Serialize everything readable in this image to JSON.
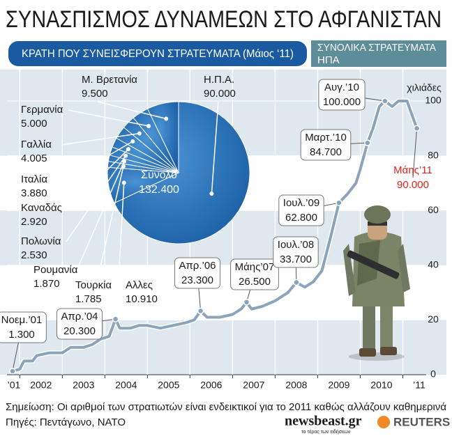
{
  "title": "ΣΥΝΑΣΠΙΣΜΟΣ ΔΥΝΑΜΕΩΝ ΣΤΟ ΑΦΓΑΝΙΣΤΑΝ",
  "chart_data": [
    {
      "type": "pie",
      "title": "ΚΡΑΤΗ ΠΟΥ ΣΥΝΕΙΣΦΕΡΟΥΝ ΣΤΡΑΤΕΥΜΑΤΑ (Μάιος ‘11)",
      "categories": [
        "Η.Π.Α.",
        "Αλλες",
        "Τουρκία",
        "Ρουμανία",
        "Πολωνία",
        "Καναδάς",
        "Ιταλία",
        "Γαλλία",
        "Γερμανία",
        "Μ. Βρετανία"
      ],
      "values": [
        90000,
        10910,
        1785,
        1870,
        2530,
        2920,
        3880,
        4005,
        5000,
        9500
      ],
      "value_labels": [
        "90.000",
        "10.910",
        "1.785",
        "1.870",
        "2.530",
        "2.920",
        "3.880",
        "4.005",
        "5.000",
        "9.500"
      ],
      "color": "#1f66ae",
      "total": {
        "label": "Σύνολο",
        "value": 132400,
        "value_label": "132.400"
      }
    },
    {
      "type": "line",
      "title": "ΣΥΝΟΛΙΚΑ ΣΤΡΑΤΕΥΜΑΤΑ",
      "subtitle": "ΗΠΑ",
      "y_label": "χιλιάδες",
      "x": [
        2001.83,
        2002.0,
        2002.1,
        2002.3,
        2002.4,
        2002.7,
        2003.0,
        2003.2,
        2003.5,
        2003.7,
        2003.9,
        2004.1,
        2004.25,
        2004.35,
        2004.6,
        2004.8,
        2005.0,
        2005.3,
        2005.6,
        2005.9,
        2006.1,
        2006.25,
        2006.4,
        2006.7,
        2007.0,
        2007.2,
        2007.33,
        2007.45,
        2007.7,
        2008.0,
        2008.3,
        2008.5,
        2008.7,
        2008.9,
        2009.1,
        2009.3,
        2009.5,
        2009.7,
        2009.9,
        2010.0,
        2010.17,
        2010.3,
        2010.45,
        2010.58,
        2010.75,
        2010.9,
        2011.1,
        2011.33
      ],
      "series": [
        {
          "name": "ΗΠΑ",
          "color": "#8aa5bb",
          "values": [
            1.3,
            2,
            5,
            5,
            7,
            8,
            8,
            10,
            10,
            11,
            13,
            14,
            20.3,
            17,
            17,
            18,
            18,
            17,
            18,
            19,
            20,
            23.3,
            21,
            21,
            22,
            24,
            26.5,
            24,
            25,
            27,
            30,
            33.7,
            32,
            34,
            38,
            50,
            62.8,
            66,
            70,
            75,
            84.7,
            90,
            98,
            100,
            98,
            100,
            100,
            90
          ]
        }
      ],
      "xlim": [
        2001.7,
        2011.55
      ],
      "xticks": [
        {
          "value": 2001,
          "label": "’01"
        },
        2002,
        2003,
        2004,
        2005,
        2006,
        2007,
        2008,
        2009,
        2010,
        {
          "value": 2011,
          "label": "’11"
        }
      ],
      "ylim": [
        0,
        100
      ],
      "yticks": [
        0,
        20,
        40,
        60,
        80,
        100
      ],
      "grid": true,
      "annotations": [
        {
          "text": "Νοεμ.’01",
          "x": 2001.83,
          "value": 1.3,
          "value_label": "1.300"
        },
        {
          "text": "Απρ.’04",
          "x": 2004.25,
          "value": 20.3,
          "value_label": "20.300"
        },
        {
          "text": "Απρ.’06",
          "x": 2006.25,
          "value": 23.3,
          "value_label": "23.300"
        },
        {
          "text": "Μάης’07",
          "x": 2007.33,
          "value": 26.5,
          "value_label": "26.500"
        },
        {
          "text": "Ιουλ.’08",
          "x": 2008.5,
          "value": 33.7,
          "value_label": "33.700"
        },
        {
          "text": "Ιουλ.’09",
          "x": 2009.5,
          "value": 62.8,
          "value_label": "62.800"
        },
        {
          "text": "Μαρτ.’10",
          "x": 2010.17,
          "value": 84.7,
          "value_label": "84.700"
        },
        {
          "text": "Αυγ.’10",
          "x": 2010.58,
          "value": 100,
          "value_label": "100.000"
        },
        {
          "text": "Μάης’11",
          "x": 2011.33,
          "value": 90,
          "value_label": "90.000",
          "color": "#e2231a"
        }
      ]
    }
  ],
  "footer": {
    "note": "Σημείωση: Οι αριθμοί των στρατιωτών είναι ενδεικτικοί για το 2011 καθώς αλλάζουν καθημερινά",
    "sources": "Πηγές: Πεντάγωνο, NATO",
    "brand": "newsbeast.gr",
    "brand_tagline": "το τέρας των ειδήσεων",
    "agency": "REUTERS"
  }
}
